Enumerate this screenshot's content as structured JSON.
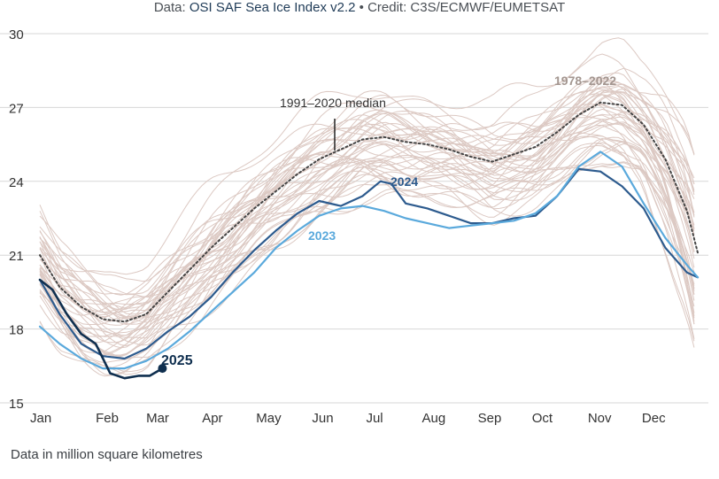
{
  "header": {
    "credit_prefix": "Data: ",
    "credit_source": "OSI SAF Sea Ice Index v2.2",
    "credit_suffix": " • Credit: C3S/ECMWF/EUMETSAT"
  },
  "footer": {
    "note": "Data in million square kilometres"
  },
  "chart_data": {
    "type": "line",
    "xlabel": "",
    "ylabel": "",
    "x_ticks": [
      "Jan",
      "Feb",
      "Mar",
      "Apr",
      "May",
      "Jun",
      "Jul",
      "Aug",
      "Sep",
      "Oct",
      "Nov",
      "Dec"
    ],
    "ylim": [
      15,
      30
    ],
    "y_ticks": [
      15,
      18,
      21,
      24,
      27,
      30
    ],
    "grid": "horizontal",
    "colors": {
      "climatology": "#dcc9c3",
      "median": "#444444",
      "s2023": "#5aa9dc",
      "s2024": "#2d5b8e",
      "s2025": "#0f2f4f",
      "grid": "#d7d7d7",
      "label_1978_2022": "#a39690"
    },
    "annotations": {
      "range_label": "1978–2022",
      "median_label": "1991–2020 median",
      "s2024_label": "2024",
      "s2023_label": "2023",
      "s2025_label": "2025"
    },
    "series": [
      {
        "name": "1991–2020 median",
        "x": [
          1,
          12,
          24,
          36,
          48,
          60,
          72,
          84,
          96,
          108,
          120,
          132,
          144,
          156,
          168,
          180,
          192,
          204,
          216,
          228,
          240,
          252,
          264,
          276,
          288,
          300,
          312,
          324,
          336,
          348,
          360,
          366
        ],
        "y": [
          21.0,
          19.7,
          18.9,
          18.4,
          18.3,
          18.6,
          19.5,
          20.4,
          21.3,
          22.1,
          22.9,
          23.6,
          24.3,
          24.9,
          25.3,
          25.7,
          25.8,
          25.6,
          25.5,
          25.3,
          25.0,
          24.8,
          25.1,
          25.4,
          26.0,
          26.7,
          27.2,
          27.1,
          26.3,
          24.9,
          22.8,
          21.1
        ]
      },
      {
        "name": "2024",
        "x": [
          1,
          12,
          24,
          36,
          48,
          60,
          72,
          84,
          96,
          108,
          120,
          132,
          144,
          156,
          168,
          180,
          190,
          196,
          204,
          216,
          228,
          240,
          252,
          264,
          276,
          288,
          300,
          312,
          324,
          336,
          348,
          360,
          366
        ],
        "y": [
          20.0,
          18.6,
          17.4,
          16.9,
          16.8,
          17.2,
          17.9,
          18.5,
          19.3,
          20.3,
          21.2,
          22.0,
          22.7,
          23.2,
          23.0,
          23.4,
          24.0,
          23.9,
          23.1,
          22.9,
          22.6,
          22.3,
          22.3,
          22.5,
          22.6,
          23.4,
          24.5,
          24.4,
          23.8,
          22.9,
          21.3,
          20.3,
          20.1
        ]
      },
      {
        "name": "2023",
        "x": [
          1,
          12,
          24,
          36,
          48,
          60,
          72,
          84,
          96,
          108,
          120,
          132,
          144,
          156,
          168,
          180,
          192,
          204,
          216,
          228,
          240,
          252,
          264,
          276,
          288,
          300,
          312,
          324,
          336,
          348,
          360,
          366
        ],
        "y": [
          18.1,
          17.4,
          16.8,
          16.4,
          16.4,
          16.7,
          17.2,
          17.9,
          18.7,
          19.5,
          20.3,
          21.3,
          22.0,
          22.6,
          22.9,
          23.0,
          22.8,
          22.5,
          22.3,
          22.1,
          22.2,
          22.3,
          22.4,
          22.7,
          23.4,
          24.6,
          25.2,
          24.6,
          23.1,
          21.7,
          20.6,
          20.1
        ]
      },
      {
        "name": "2025",
        "x": [
          1,
          8,
          16,
          24,
          32,
          40,
          48,
          56,
          62,
          69
        ],
        "y": [
          20.0,
          19.6,
          18.6,
          17.8,
          17.4,
          16.2,
          16.0,
          16.1,
          16.1,
          16.4
        ]
      }
    ]
  }
}
